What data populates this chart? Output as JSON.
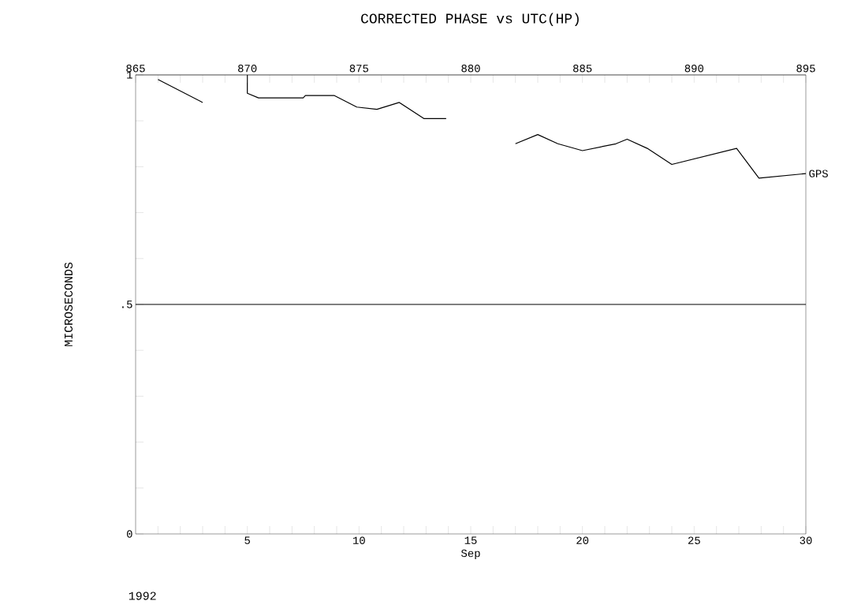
{
  "chart_data": {
    "type": "line",
    "title": "CORRECTED PHASE vs UTC(HP)",
    "xlabel": "Sep",
    "ylabel": "MICROSECONDS",
    "annotations": [
      "1992"
    ],
    "xlim": [
      0,
      30
    ],
    "xticks": [
      {
        "value": 1,
        "label": null
      },
      {
        "value": 2,
        "label": null
      },
      {
        "value": 3,
        "label": null
      },
      {
        "value": 4,
        "label": null
      },
      5,
      {
        "value": 6,
        "label": null
      },
      {
        "value": 7,
        "label": null
      },
      {
        "value": 8,
        "label": null
      },
      {
        "value": 9,
        "label": null
      },
      10,
      {
        "value": 11,
        "label": null
      },
      {
        "value": 12,
        "label": null
      },
      {
        "value": 13,
        "label": null
      },
      {
        "value": 14,
        "label": null
      },
      15,
      {
        "value": 16,
        "label": null
      },
      {
        "value": 17,
        "label": null
      },
      {
        "value": 18,
        "label": null
      },
      {
        "value": 19,
        "label": null
      },
      20,
      {
        "value": 21,
        "label": null
      },
      {
        "value": 22,
        "label": null
      },
      {
        "value": 23,
        "label": null
      },
      {
        "value": 24,
        "label": null
      },
      25,
      {
        "value": 26,
        "label": null
      },
      {
        "value": 27,
        "label": null
      },
      {
        "value": 28,
        "label": null
      },
      {
        "value": 29,
        "label": null
      },
      30
    ],
    "x2lim": [
      865,
      895
    ],
    "x2ticks": [
      865,
      {
        "value": 866,
        "label": null
      },
      {
        "value": 867,
        "label": null
      },
      {
        "value": 868,
        "label": null
      },
      {
        "value": 869,
        "label": null
      },
      870,
      {
        "value": 871,
        "label": null
      },
      {
        "value": 872,
        "label": null
      },
      {
        "value": 873,
        "label": null
      },
      {
        "value": 874,
        "label": null
      },
      875,
      {
        "value": 876,
        "label": null
      },
      {
        "value": 877,
        "label": null
      },
      {
        "value": 878,
        "label": null
      },
      {
        "value": 879,
        "label": null
      },
      880,
      {
        "value": 881,
        "label": null
      },
      {
        "value": 882,
        "label": null
      },
      {
        "value": 883,
        "label": null
      },
      {
        "value": 884,
        "label": null
      },
      885,
      {
        "value": 886,
        "label": null
      },
      {
        "value": 887,
        "label": null
      },
      {
        "value": 888,
        "label": null
      },
      {
        "value": 889,
        "label": null
      },
      890,
      {
        "value": 891,
        "label": null
      },
      {
        "value": 892,
        "label": null
      },
      {
        "value": 893,
        "label": null
      },
      {
        "value": 894,
        "label": null
      },
      895
    ],
    "ylim": [
      0,
      1
    ],
    "yticks": [
      0,
      {
        "value": 0.1,
        "label": null
      },
      {
        "value": 0.2,
        "label": null
      },
      {
        "value": 0.3,
        "label": null
      },
      {
        "value": 0.4,
        "label": null
      },
      {
        "value": 0.5,
        "label": ".5"
      },
      {
        "value": 0.6,
        "label": null
      },
      {
        "value": 0.7,
        "label": null
      },
      {
        "value": 0.8,
        "label": null
      },
      {
        "value": 0.9,
        "label": null
      },
      1
    ],
    "ref_lines": [
      {
        "axis": "y",
        "value": 0.5,
        "color": "#000000"
      }
    ],
    "line_style": "solid",
    "series": [
      {
        "name": "GPS",
        "color": "#000000",
        "x": [
          1,
          3,
          4,
          5,
          5,
          5.5,
          6.2,
          7.5,
          7.6,
          8.9,
          9.9,
          10.8,
          11.8,
          12.9,
          13.9,
          15,
          17,
          18,
          18.9,
          20,
          21.5,
          22,
          22.9,
          24,
          26.9,
          27.9,
          30
        ],
        "values": [
          0.99,
          0.94,
          null,
          1.0,
          0.96,
          0.95,
          0.95,
          0.95,
          0.955,
          0.955,
          0.93,
          0.925,
          0.94,
          0.905,
          0.905,
          null,
          0.85,
          0.87,
          0.85,
          0.835,
          0.85,
          0.86,
          0.84,
          0.805,
          0.84,
          0.775,
          0.785
        ]
      }
    ]
  }
}
